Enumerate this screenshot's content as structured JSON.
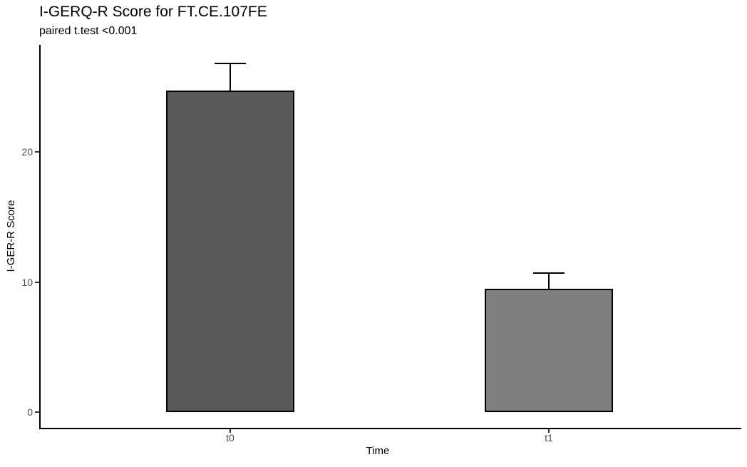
{
  "chart_data": {
    "type": "bar",
    "title": "I-GERQ-R Score for FT.CE.107FE",
    "subtitle": "paired t.test <0.001",
    "xlabel": "Time",
    "ylabel": "I-GER-R Score",
    "categories": [
      "t0",
      "t1"
    ],
    "values": [
      24.7,
      9.5
    ],
    "error_ymax": [
      26.8,
      10.7
    ],
    "bar_colors": [
      "#595959",
      "#7f7f7f"
    ],
    "bar_border_color": "#000000",
    "error_bar_color": "#000000",
    "yticks": [
      0,
      10,
      20
    ],
    "ylim": [
      0,
      28.2
    ],
    "grid": false,
    "legend": "none",
    "background_color": "#ffffff",
    "axis_line_color": "#000000",
    "axis_text_color": "#4d4d4d",
    "title_color": "#000000"
  }
}
